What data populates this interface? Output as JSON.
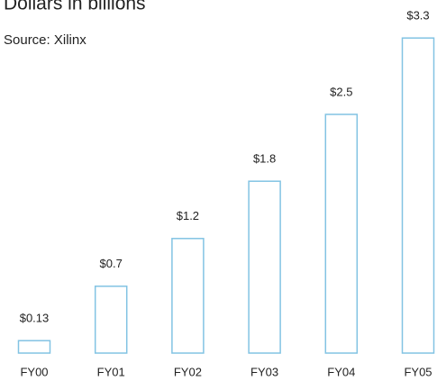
{
  "chart_data": {
    "type": "bar",
    "title": "Dollars in billions",
    "subtitle": "Source: Xilinx",
    "categories": [
      "FY00",
      "FY01",
      "FY02",
      "FY03",
      "FY04",
      "FY05"
    ],
    "values": [
      0.13,
      0.7,
      1.2,
      1.8,
      2.5,
      3.3
    ],
    "value_labels": [
      "$0.13",
      "$0.7",
      "$1.2",
      "$1.8",
      "$2.5",
      "$3.3"
    ],
    "color": "#82c3e3"
  }
}
